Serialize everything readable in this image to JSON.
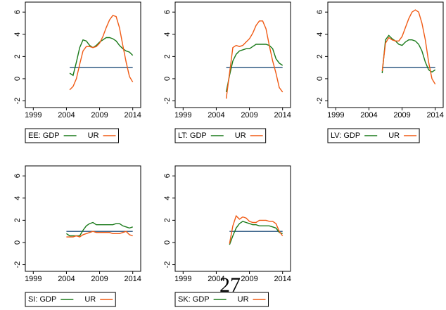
{
  "chart_data": [
    {
      "type": "line",
      "xlim": [
        1997.8,
        2015.2
      ],
      "ylim": [
        -2.6,
        6.9
      ],
      "xticks": [
        1999,
        2004,
        2009,
        2014
      ],
      "yticks": [
        -2,
        0,
        2,
        4,
        6
      ],
      "x": [
        2004.5,
        2005,
        2005.5,
        2006,
        2006.5,
        2007,
        2007.5,
        2008,
        2008.5,
        2009,
        2009.5,
        2010,
        2010.5,
        2011,
        2011.5,
        2012,
        2012.5,
        2013,
        2013.5,
        2014
      ],
      "series": [
        {
          "name": "EE: GDP",
          "color": "#1a7a1a",
          "values": [
            0.5,
            0.3,
            1.5,
            2.8,
            3.5,
            3.4,
            3.0,
            2.8,
            3.0,
            3.3,
            3.5,
            3.7,
            3.7,
            3.6,
            3.4,
            3.0,
            2.7,
            2.5,
            2.4,
            2.1
          ]
        },
        {
          "name": "UR",
          "color": "#f05a14",
          "values": [
            -1.0,
            -0.7,
            0.0,
            1.3,
            2.5,
            2.9,
            2.9,
            2.8,
            2.9,
            3.2,
            3.8,
            4.6,
            5.3,
            5.7,
            5.6,
            4.6,
            3.0,
            1.5,
            0.2,
            -0.3
          ]
        }
      ],
      "reference_line": {
        "value": 1,
        "x": [
          2004.5,
          2014
        ],
        "color": "#1f4e79"
      }
    },
    {
      "type": "line",
      "xlim": [
        1997.8,
        2015.2
      ],
      "ylim": [
        -2.6,
        6.9
      ],
      "xticks": [
        1999,
        2004,
        2009,
        2014
      ],
      "yticks": [
        -2,
        0,
        2,
        4,
        6
      ],
      "x": [
        2005.5,
        2006,
        2006.5,
        2007,
        2007.5,
        2008,
        2008.5,
        2009,
        2009.5,
        2010,
        2010.5,
        2011,
        2011.5,
        2012,
        2012.5,
        2013,
        2013.5,
        2014
      ],
      "series": [
        {
          "name": "LT: GDP",
          "color": "#1a7a1a",
          "values": [
            -1.2,
            0.3,
            1.6,
            2.2,
            2.5,
            2.6,
            2.7,
            2.7,
            2.9,
            3.1,
            3.1,
            3.1,
            3.1,
            3.0,
            2.7,
            1.8,
            1.4,
            1.2
          ]
        },
        {
          "name": "UR",
          "color": "#f05a14",
          "values": [
            -1.8,
            0.5,
            2.8,
            3.0,
            2.9,
            3.0,
            3.3,
            3.6,
            4.1,
            4.8,
            5.2,
            5.2,
            4.5,
            3.0,
            1.6,
            0.5,
            -0.8,
            -1.2
          ]
        }
      ],
      "reference_line": {
        "value": 1,
        "x": [
          2005.5,
          2014
        ],
        "color": "#1f4e79"
      }
    },
    {
      "type": "line",
      "xlim": [
        1997.8,
        2015.2
      ],
      "ylim": [
        -2.6,
        6.9
      ],
      "xticks": [
        1999,
        2004,
        2009,
        2014
      ],
      "yticks": [
        -2,
        0,
        2,
        4,
        6
      ],
      "x": [
        2006,
        2006.5,
        2007,
        2007.5,
        2008,
        2008.5,
        2009,
        2009.5,
        2010,
        2010.5,
        2011,
        2011.5,
        2012,
        2012.5,
        2013,
        2013.5,
        2014
      ],
      "series": [
        {
          "name": "LV: GDP",
          "color": "#1a7a1a",
          "values": [
            0.5,
            3.5,
            3.9,
            3.6,
            3.4,
            3.1,
            3.0,
            3.3,
            3.5,
            3.5,
            3.4,
            3.1,
            2.5,
            1.5,
            0.8,
            0.6,
            0.8
          ]
        },
        {
          "name": "UR",
          "color": "#f05a14",
          "values": [
            0.7,
            3.2,
            3.7,
            3.5,
            3.4,
            3.4,
            3.8,
            4.6,
            5.4,
            6.0,
            6.2,
            6.0,
            5.0,
            3.5,
            1.5,
            0.0,
            -0.5
          ]
        }
      ],
      "reference_line": {
        "value": 1,
        "x": [
          2006,
          2014
        ],
        "color": "#1f4e79"
      }
    },
    {
      "type": "line",
      "xlim": [
        1997.8,
        2015.2
      ],
      "ylim": [
        -2.6,
        6.9
      ],
      "xticks": [
        1999,
        2004,
        2009,
        2014
      ],
      "yticks": [
        -2,
        0,
        2,
        4,
        6
      ],
      "x": [
        2004,
        2004.5,
        2005,
        2005.5,
        2006,
        2006.5,
        2007,
        2007.5,
        2008,
        2008.5,
        2009,
        2009.5,
        2010,
        2010.5,
        2011,
        2011.5,
        2012,
        2012.5,
        2013,
        2013.5,
        2014
      ],
      "series": [
        {
          "name": "SI: GDP",
          "color": "#1a7a1a",
          "values": [
            0.8,
            0.6,
            0.6,
            0.6,
            0.6,
            1.1,
            1.5,
            1.7,
            1.8,
            1.6,
            1.6,
            1.6,
            1.6,
            1.6,
            1.6,
            1.7,
            1.7,
            1.5,
            1.4,
            1.3,
            1.4
          ]
        },
        {
          "name": "UR",
          "color": "#f05a14",
          "values": [
            0.5,
            0.5,
            0.5,
            0.6,
            0.5,
            0.7,
            0.8,
            0.9,
            1.0,
            0.9,
            0.9,
            0.9,
            0.9,
            0.9,
            0.8,
            0.8,
            0.8,
            0.9,
            1.0,
            0.7,
            0.6
          ]
        }
      ],
      "reference_line": {
        "value": 1,
        "x": [
          2004,
          2014
        ],
        "color": "#1f4e79"
      }
    },
    {
      "type": "line",
      "xlim": [
        1997.8,
        2015.2
      ],
      "ylim": [
        -2.6,
        6.9
      ],
      "xticks": [
        1999,
        2004,
        2009,
        2014
      ],
      "yticks": [
        -2,
        0,
        2,
        4,
        6
      ],
      "x": [
        2006,
        2006.5,
        2007,
        2007.5,
        2008,
        2008.5,
        2009,
        2009.5,
        2010,
        2010.5,
        2011,
        2011.5,
        2012,
        2012.5,
        2013,
        2013.5,
        2014
      ],
      "series": [
        {
          "name": "SK: GDP",
          "color": "#1a7a1a",
          "values": [
            -0.2,
            0.6,
            1.3,
            1.7,
            1.9,
            1.8,
            1.7,
            1.6,
            1.6,
            1.5,
            1.5,
            1.5,
            1.5,
            1.4,
            1.3,
            0.9,
            0.8
          ]
        },
        {
          "name": "UR",
          "color": "#f05a14",
          "values": [
            -0.1,
            1.5,
            2.4,
            2.1,
            2.3,
            2.2,
            1.9,
            1.8,
            1.8,
            2.0,
            2.0,
            2.0,
            1.9,
            1.9,
            1.7,
            1.0,
            0.6
          ]
        }
      ],
      "reference_line": {
        "value": 1,
        "x": [
          2006,
          2014
        ],
        "color": "#1f4e79"
      }
    }
  ],
  "page_number": "27"
}
